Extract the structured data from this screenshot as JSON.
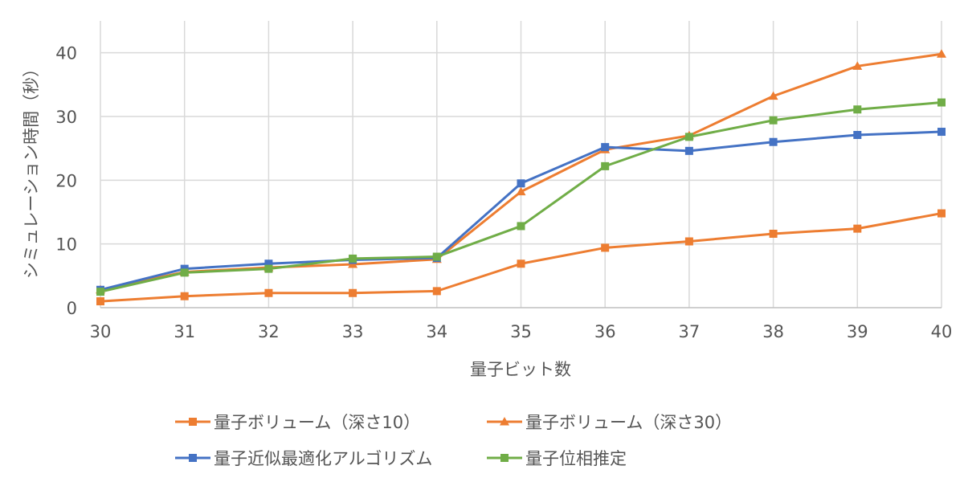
{
  "chart_data": {
    "type": "line",
    "title": "",
    "xlabel": "量子ビット数",
    "ylabel": "シミュレーション時間（秒）",
    "x": [
      30,
      31,
      32,
      33,
      34,
      35,
      36,
      37,
      38,
      39,
      40
    ],
    "xlim": [
      30,
      40
    ],
    "ylim": [
      0,
      45
    ],
    "yticks": [
      0,
      10,
      20,
      30,
      40
    ],
    "grid": true,
    "legend_position": "bottom",
    "series": [
      {
        "name": "量子ボリューム（深さ10）",
        "color": "#ED7D31",
        "marker": "square",
        "values": [
          1.0,
          1.8,
          2.3,
          2.3,
          2.6,
          6.9,
          9.4,
          10.4,
          11.6,
          12.4,
          14.8
        ]
      },
      {
        "name": "量子ボリューム（深さ30）",
        "color": "#ED7D31",
        "marker": "triangle",
        "values": [
          2.8,
          5.6,
          6.3,
          6.8,
          7.6,
          18.2,
          24.8,
          27.0,
          33.2,
          37.9,
          39.8
        ]
      },
      {
        "name": "量子近似最適化アルゴリズム",
        "color": "#4472C4",
        "marker": "square",
        "values": [
          2.8,
          6.1,
          6.9,
          7.5,
          7.8,
          19.5,
          25.2,
          24.6,
          26.0,
          27.1,
          27.6
        ]
      },
      {
        "name": "量子位相推定",
        "color": "#70AD47",
        "marker": "square",
        "values": [
          2.5,
          5.5,
          6.1,
          7.7,
          8.0,
          12.8,
          22.2,
          26.8,
          29.4,
          31.1,
          32.2
        ]
      }
    ]
  }
}
